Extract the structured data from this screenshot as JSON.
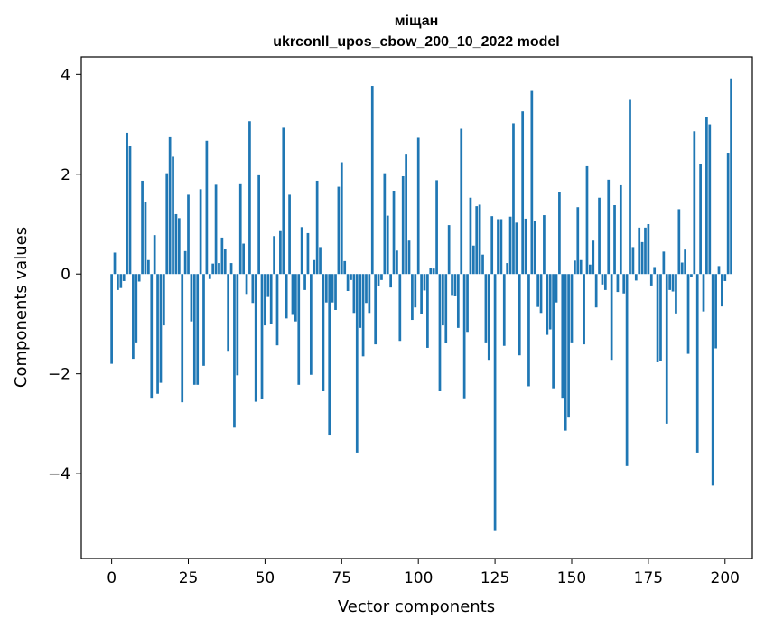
{
  "chart_data": {
    "type": "bar",
    "title": "міщан",
    "subtitle": "ukrconll_upos_cbow_200_10_2022 model",
    "xlabel": "Vector components",
    "ylabel": "Components values",
    "xlim": [
      -9.9,
      208.9
    ],
    "ylim": [
      -5.7,
      4.35
    ],
    "x_ticks": [
      0,
      25,
      50,
      75,
      100,
      125,
      150,
      175,
      200
    ],
    "x_tick_labels": [
      "0",
      "25",
      "50",
      "75",
      "100",
      "125",
      "150",
      "175",
      "200"
    ],
    "y_ticks": [
      4,
      2,
      0,
      -2,
      -4
    ],
    "y_tick_labels": [
      "4",
      "2",
      "0",
      "−2",
      "−4"
    ],
    "bar_color": "#1f77b4",
    "values": [
      -1.8,
      0.43,
      -0.32,
      -0.28,
      -0.14,
      2.83,
      2.57,
      -1.7,
      -1.37,
      -0.15,
      1.87,
      1.45,
      0.28,
      -2.48,
      0.78,
      -2.4,
      -2.18,
      -1.03,
      2.02,
      2.74,
      2.35,
      1.2,
      1.12,
      -2.57,
      0.46,
      1.59,
      -0.95,
      -2.22,
      -2.22,
      1.7,
      -1.84,
      2.67,
      -0.1,
      0.21,
      1.79,
      0.22,
      0.73,
      0.5,
      -1.54,
      0.22,
      -3.08,
      -2.03,
      1.8,
      0.61,
      -0.4,
      3.06,
      -0.58,
      -2.56,
      1.98,
      -2.51,
      -1.03,
      -0.46,
      -1.0,
      0.76,
      -1.43,
      0.86,
      2.93,
      -0.89,
      1.59,
      -0.82,
      -0.95,
      -2.22,
      0.94,
      -0.32,
      0.82,
      -2.02,
      0.28,
      1.87,
      0.54,
      -2.35,
      -0.57,
      -3.22,
      -0.57,
      -0.72,
      1.75,
      2.24,
      0.26,
      -0.34,
      -0.12,
      -0.78,
      -3.58,
      -1.08,
      -1.65,
      -0.58,
      -0.78,
      3.77,
      -1.41,
      -0.24,
      -0.12,
      2.02,
      1.17,
      -0.27,
      1.67,
      0.47,
      -1.34,
      1.96,
      2.41,
      0.67,
      -0.92,
      -0.67,
      2.73,
      -0.81,
      -0.33,
      -1.48,
      0.13,
      0.11,
      1.88,
      -2.35,
      -1.03,
      -1.38,
      0.98,
      -0.42,
      -0.43,
      -1.08,
      2.91,
      -2.49,
      -1.16,
      1.53,
      0.57,
      1.36,
      1.39,
      0.39,
      -1.37,
      -1.72,
      1.16,
      -5.15,
      1.1,
      1.1,
      -1.44,
      0.22,
      1.15,
      3.02,
      1.03,
      -1.63,
      3.26,
      1.11,
      -2.25,
      3.67,
      1.07,
      -0.66,
      -0.78,
      1.18,
      -1.22,
      -1.11,
      -2.29,
      -0.57,
      1.65,
      -2.48,
      -3.14,
      -2.86,
      -1.37,
      0.27,
      1.34,
      0.28,
      -1.41,
      2.16,
      0.19,
      0.67,
      -0.67,
      1.53,
      -0.21,
      -0.32,
      1.89,
      -1.72,
      1.38,
      -0.36,
      1.78,
      -0.39,
      -3.85,
      3.49,
      0.54,
      -0.13,
      0.93,
      0.64,
      0.93,
      1.0,
      -0.23,
      0.14,
      -1.77,
      -1.75,
      0.45,
      -3.0,
      -0.32,
      -0.35,
      -0.79,
      1.3,
      0.23,
      0.49,
      -1.6,
      -0.06,
      2.86,
      -3.58,
      2.2,
      -0.75,
      3.14,
      3.0,
      -4.24,
      -1.49,
      0.16,
      -0.65,
      -0.14,
      2.43,
      3.92
    ]
  }
}
